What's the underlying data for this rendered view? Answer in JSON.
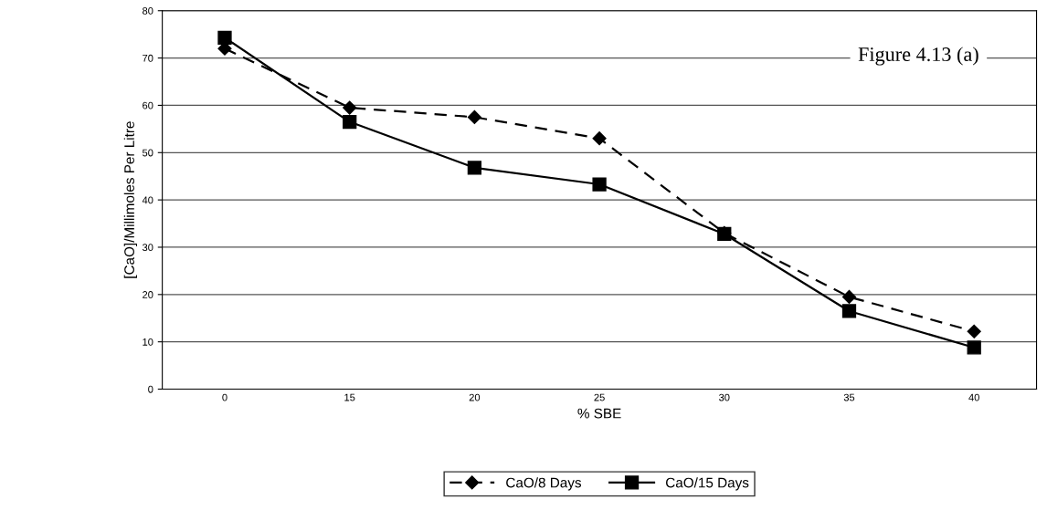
{
  "chart_data": {
    "type": "line",
    "xlabel": "% SBE",
    "ylabel": "[CaO]/Millimoles Per Litre",
    "annotations": [
      "Figure 4.13 (a)"
    ],
    "categories": [
      "0",
      "15",
      "20",
      "25",
      "30",
      "35",
      "40"
    ],
    "series": [
      {
        "name": "CaO/8 Days",
        "color": "#000000",
        "marker": "diamond",
        "line_style": "dashed",
        "values": [
          72,
          59.5,
          57.5,
          53,
          33,
          19.5,
          12.2
        ]
      },
      {
        "name": "CaO/15 Days",
        "color": "#000000",
        "marker": "square",
        "line_style": "solid",
        "values": [
          74.3,
          56.5,
          46.8,
          43.3,
          32.8,
          16.5,
          8.8
        ]
      }
    ],
    "ylim": [
      0,
      80
    ],
    "yticks": [
      0,
      10,
      20,
      30,
      40,
      50,
      60,
      70,
      80
    ],
    "grid": "y",
    "legend": "bottom"
  }
}
